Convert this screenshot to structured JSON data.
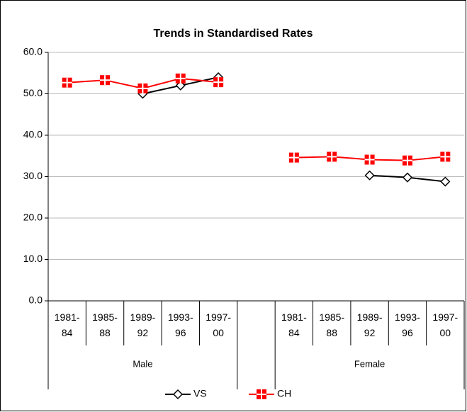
{
  "chart_data": {
    "type": "line",
    "title": "Trends in Standardised Rates",
    "categories": [
      "1981-84",
      "1985-88",
      "1989-92",
      "1993-96",
      "1997-00",
      null,
      "1981-84",
      "1985-88",
      "1989-92",
      "1993-96",
      "1997-00"
    ],
    "groups": [
      "Male",
      "Female"
    ],
    "series": [
      {
        "name": "VS",
        "color": "#000000",
        "values": [
          null,
          null,
          50.0,
          52.0,
          54.0,
          null,
          null,
          null,
          30.3,
          29.8,
          28.8
        ]
      },
      {
        "name": "CH",
        "color": "#ff0000",
        "values": [
          52.7,
          53.3,
          51.3,
          53.7,
          52.8,
          null,
          34.6,
          34.8,
          34.1,
          33.9,
          34.8
        ]
      }
    ],
    "ylim": [
      0,
      60
    ],
    "yticks": [
      {
        "value": 0,
        "label": "0.0"
      },
      {
        "value": 10,
        "label": "10.0"
      },
      {
        "value": 20,
        "label": "20.0"
      },
      {
        "value": 30,
        "label": "30.0"
      },
      {
        "value": 40,
        "label": "40.0"
      },
      {
        "value": 50,
        "label": "50.0"
      },
      {
        "value": 60,
        "label": "60.0"
      }
    ],
    "grid": true,
    "legend": "bottom"
  }
}
